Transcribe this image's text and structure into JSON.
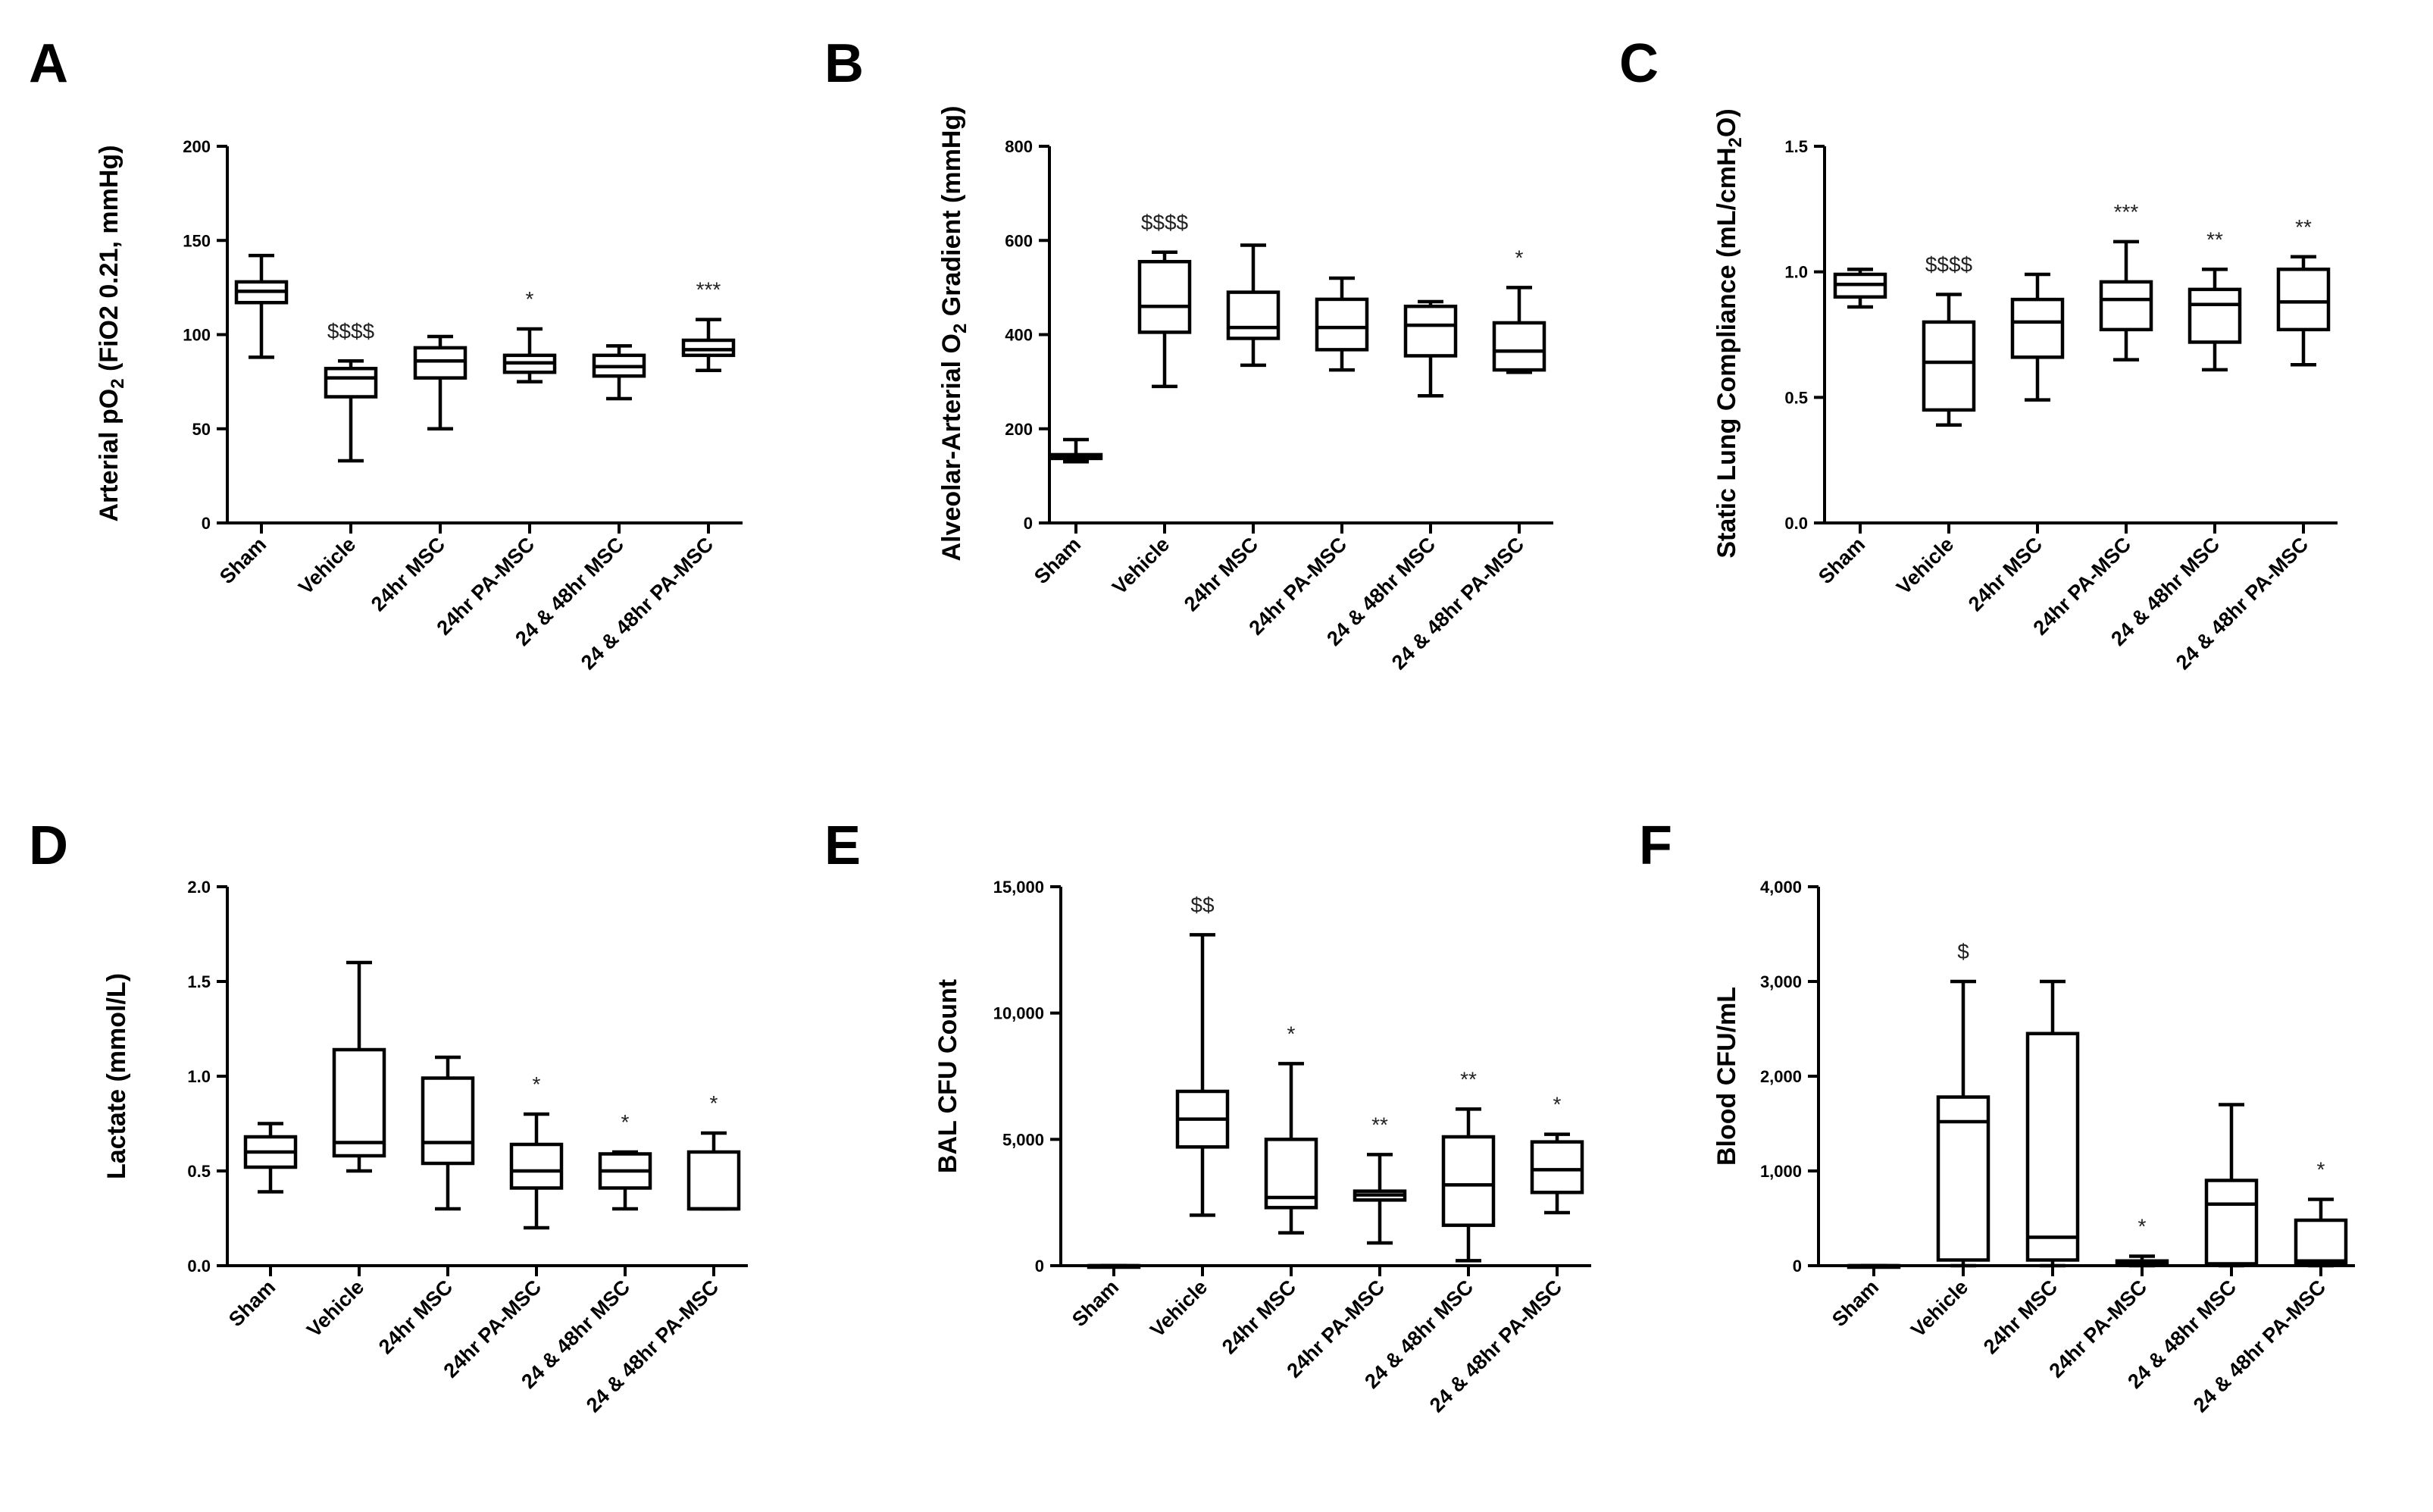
{
  "chart_data": [
    {
      "type": "box",
      "panel": "A",
      "ylabel": "Arterial pO<sub>2</sub> (FiO2 0.21, mmHg)",
      "ylim": [
        0,
        200
      ],
      "yticks": [
        "0",
        "50",
        "100",
        "150",
        "200"
      ],
      "categories": [
        "Sham",
        "Vehicle",
        "24hr MSC",
        "24hr PA-MSC",
        "24 & 48hr MSC",
        "24 & 48hr PA-MSC"
      ],
      "boxes": [
        {
          "min": 88,
          "q1": 117,
          "median": 123,
          "q3": 128,
          "max": 142
        },
        {
          "min": 33,
          "q1": 67,
          "median": 77,
          "q3": 82,
          "max": 86
        },
        {
          "min": 50,
          "q1": 77,
          "median": 86,
          "q3": 93,
          "max": 99
        },
        {
          "min": 75,
          "q1": 80,
          "median": 85,
          "q3": 89,
          "max": 103
        },
        {
          "min": 66,
          "q1": 78,
          "median": 83,
          "q3": 89,
          "max": 94
        },
        {
          "min": 81,
          "q1": 89,
          "median": 92,
          "q3": 97,
          "max": 108
        }
      ],
      "annotations": [
        "",
        "$$$$",
        "",
        "*",
        "",
        "***"
      ]
    },
    {
      "type": "box",
      "panel": "B",
      "ylabel": "Alveolar-Arterial O<sub>2</sub> Gradient (mmHg)",
      "ylim": [
        0,
        800
      ],
      "yticks": [
        "0",
        "200",
        "400",
        "600",
        "800"
      ],
      "categories": [
        "Sham",
        "Vehicle",
        "24hr MSC",
        "24hr PA-MSC",
        "24 & 48hr MSC",
        "24 & 48hr PA-MSC"
      ],
      "boxes": [
        {
          "min": 130,
          "q1": 137,
          "median": 141,
          "q3": 145,
          "max": 177
        },
        {
          "min": 290,
          "q1": 405,
          "median": 460,
          "q3": 555,
          "max": 575
        },
        {
          "min": 335,
          "q1": 392,
          "median": 415,
          "q3": 490,
          "max": 590
        },
        {
          "min": 325,
          "q1": 368,
          "median": 415,
          "q3": 475,
          "max": 520
        },
        {
          "min": 270,
          "q1": 355,
          "median": 420,
          "q3": 460,
          "max": 470
        },
        {
          "min": 320,
          "q1": 325,
          "median": 365,
          "q3": 425,
          "max": 500
        }
      ],
      "annotations": [
        "",
        "$$$$",
        "",
        "",
        "",
        "*"
      ]
    },
    {
      "type": "box",
      "panel": "C",
      "ylabel": "Static Lung Compliance (mL/cmH<sub>2</sub>O)",
      "ylim": [
        0,
        1.5
      ],
      "yticks": [
        "0.0",
        "0.5",
        "1.0",
        "1.5"
      ],
      "categories": [
        "Sham",
        "Vehicle",
        "24hr MSC",
        "24hr PA-MSC",
        "24 & 48hr MSC",
        "24 & 48hr PA-MSC"
      ],
      "boxes": [
        {
          "min": 0.86,
          "q1": 0.9,
          "median": 0.95,
          "q3": 0.99,
          "max": 1.01
        },
        {
          "min": 0.39,
          "q1": 0.45,
          "median": 0.64,
          "q3": 0.8,
          "max": 0.91
        },
        {
          "min": 0.49,
          "q1": 0.66,
          "median": 0.8,
          "q3": 0.89,
          "max": 0.99
        },
        {
          "min": 0.65,
          "q1": 0.77,
          "median": 0.89,
          "q3": 0.96,
          "max": 1.12
        },
        {
          "min": 0.61,
          "q1": 0.72,
          "median": 0.87,
          "q3": 0.93,
          "max": 1.01
        },
        {
          "min": 0.63,
          "q1": 0.77,
          "median": 0.88,
          "q3": 1.01,
          "max": 1.06
        }
      ],
      "annotations": [
        "",
        "$$$$",
        "",
        "***",
        "**",
        "**"
      ]
    },
    {
      "type": "box",
      "panel": "D",
      "ylabel": "Lactate (mmol/L)",
      "ylim": [
        0,
        2.0
      ],
      "yticks": [
        "0.0",
        "0.5",
        "1.0",
        "1.5",
        "2.0"
      ],
      "categories": [
        "Sham",
        "Vehicle",
        "24hr MSC",
        "24hr PA-MSC",
        "24 & 48hr MSC",
        "24 & 48hr PA-MSC"
      ],
      "boxes": [
        {
          "min": 0.39,
          "q1": 0.52,
          "median": 0.6,
          "q3": 0.68,
          "max": 0.75
        },
        {
          "min": 0.5,
          "q1": 0.58,
          "median": 0.65,
          "q3": 1.14,
          "max": 1.6
        },
        {
          "min": 0.3,
          "q1": 0.54,
          "median": 0.65,
          "q3": 0.99,
          "max": 1.1
        },
        {
          "min": 0.2,
          "q1": 0.41,
          "median": 0.5,
          "q3": 0.64,
          "max": 0.8
        },
        {
          "min": 0.3,
          "q1": 0.41,
          "median": 0.5,
          "q3": 0.59,
          "max": 0.6
        },
        {
          "min": 0.3,
          "q1": 0.3,
          "median": 0.3,
          "q3": 0.6,
          "max": 0.7
        }
      ],
      "annotations": [
        "",
        "",
        "",
        "*",
        "*",
        "*"
      ]
    },
    {
      "type": "box",
      "panel": "E",
      "ylabel": "BAL CFU Count",
      "ylim": [
        0,
        15000
      ],
      "yticks": [
        "0",
        "5,000",
        "10,000",
        "15,000"
      ],
      "categories": [
        "Sham",
        "Vehicle",
        "24hr MSC",
        "24hr PA-MSC",
        "24 & 48hr MSC",
        "24 & 48hr PA-MSC"
      ],
      "boxes": [
        {
          "min": 0,
          "q1": 0,
          "median": 0,
          "q3": 0,
          "max": 0
        },
        {
          "min": 2000,
          "q1": 4700,
          "median": 5800,
          "q3": 6900,
          "max": 13100
        },
        {
          "min": 1300,
          "q1": 2300,
          "median": 2700,
          "q3": 5000,
          "max": 8000
        },
        {
          "min": 900,
          "q1": 2600,
          "median": 2800,
          "q3": 2950,
          "max": 4400
        },
        {
          "min": 200,
          "q1": 1600,
          "median": 3200,
          "q3": 5100,
          "max": 6200
        },
        {
          "min": 2100,
          "q1": 2900,
          "median": 3800,
          "q3": 4900,
          "max": 5200
        }
      ],
      "annotations": [
        "",
        "$$",
        "*",
        "**",
        "**",
        "*"
      ]
    },
    {
      "type": "box",
      "panel": "F",
      "ylabel": "Blood CFU/mL",
      "ylim": [
        0,
        4000
      ],
      "yticks": [
        "0",
        "1,000",
        "2,000",
        "3,000",
        "4,000"
      ],
      "categories": [
        "Sham",
        "Vehicle",
        "24hr MSC",
        "24hr PA-MSC",
        "24 & 48hr MSC",
        "24 & 48hr PA-MSC"
      ],
      "boxes": [
        {
          "min": 0,
          "q1": 0,
          "median": 0,
          "q3": 0,
          "max": 0
        },
        {
          "min": 0,
          "q1": 60,
          "median": 1520,
          "q3": 1780,
          "max": 3000
        },
        {
          "min": 0,
          "q1": 60,
          "median": 300,
          "q3": 2450,
          "max": 3000
        },
        {
          "min": 0,
          "q1": 10,
          "median": 30,
          "q3": 50,
          "max": 100
        },
        {
          "min": 0,
          "q1": 20,
          "median": 650,
          "q3": 900,
          "max": 1700
        },
        {
          "min": 0,
          "q1": 20,
          "median": 50,
          "q3": 480,
          "max": 700
        }
      ],
      "annotations": [
        "",
        "$",
        "",
        "*",
        "",
        "*"
      ]
    }
  ]
}
